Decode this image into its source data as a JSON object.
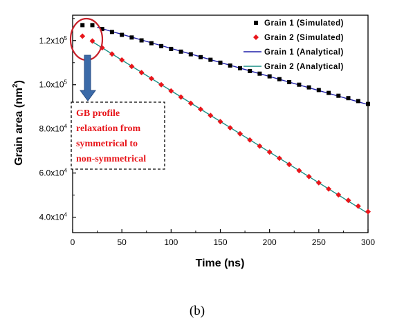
{
  "chart_data": {
    "type": "scatter",
    "title": "",
    "xlabel": "Time (ns)",
    "ylabel": "Grain area (nm",
    "ylabel_superscript": "2",
    "ylabel_close": ")",
    "xlim": [
      0,
      300
    ],
    "ylim": [
      33000,
      131500
    ],
    "x_ticks": [
      0,
      50,
      100,
      150,
      200,
      250,
      300
    ],
    "y_ticks": [
      {
        "value": 40000,
        "mantissa": "4.0x10",
        "exp": "4"
      },
      {
        "value": 60000,
        "mantissa": "6.0x10",
        "exp": "4"
      },
      {
        "value": 80000,
        "mantissa": "8.0x10",
        "exp": "4"
      },
      {
        "value": 100000,
        "mantissa": "1.0x10",
        "exp": "5"
      },
      {
        "value": 120000,
        "mantissa": "1.2x10",
        "exp": "5"
      }
    ],
    "grid": false,
    "legend_position": "top-right",
    "series": [
      {
        "name": "Grain 1 (Simulated)",
        "kind": "marker",
        "marker": "square",
        "color": "#000000",
        "x": [
          10,
          20,
          30,
          40,
          50,
          60,
          70,
          80,
          90,
          100,
          110,
          120,
          130,
          140,
          150,
          160,
          170,
          180,
          190,
          200,
          210,
          220,
          230,
          240,
          250,
          260,
          270,
          280,
          290,
          300
        ],
        "y": [
          127000,
          127000,
          125200,
          123900,
          122600,
          121400,
          120100,
          118800,
          117500,
          116200,
          115000,
          113800,
          112500,
          111300,
          110000,
          108700,
          107500,
          106200,
          105000,
          103800,
          102500,
          101200,
          100000,
          98800,
          97600,
          96300,
          95000,
          93900,
          92600,
          91300
        ]
      },
      {
        "name": "Grain 2 (Simulated)",
        "kind": "marker",
        "marker": "diamond",
        "color": "#e8161b",
        "x": [
          10,
          20,
          30,
          40,
          50,
          60,
          70,
          80,
          90,
          100,
          110,
          120,
          130,
          140,
          150,
          160,
          170,
          180,
          190,
          200,
          210,
          220,
          230,
          240,
          250,
          260,
          270,
          280,
          290,
          300
        ],
        "y": [
          122000,
          119800,
          116700,
          113900,
          111200,
          108300,
          105500,
          102800,
          100000,
          97200,
          94400,
          91600,
          88900,
          86100,
          83300,
          80500,
          77800,
          75000,
          72200,
          69500,
          66700,
          63900,
          61100,
          58400,
          55600,
          52800,
          50100,
          47600,
          45000,
          42500
        ]
      },
      {
        "name": "Grain 1 (Analytical)",
        "kind": "line",
        "color": "#1f1fa8",
        "x": [
          25,
          300
        ],
        "y": [
          126000,
          91000
        ]
      },
      {
        "name": "Grain 2 (Analytical)",
        "kind": "line",
        "color": "#1a8f86",
        "x": [
          20,
          300
        ],
        "y": [
          119500,
          41700
        ]
      }
    ],
    "annotation": {
      "lines": [
        "GB profile",
        "relaxation from",
        "symmetrical to",
        "non-symmetrical"
      ],
      "text_color": "#e8161b",
      "ellipse_color": "#c8202a",
      "arrow_color": "#3b6aa8"
    }
  },
  "caption": "(b)"
}
